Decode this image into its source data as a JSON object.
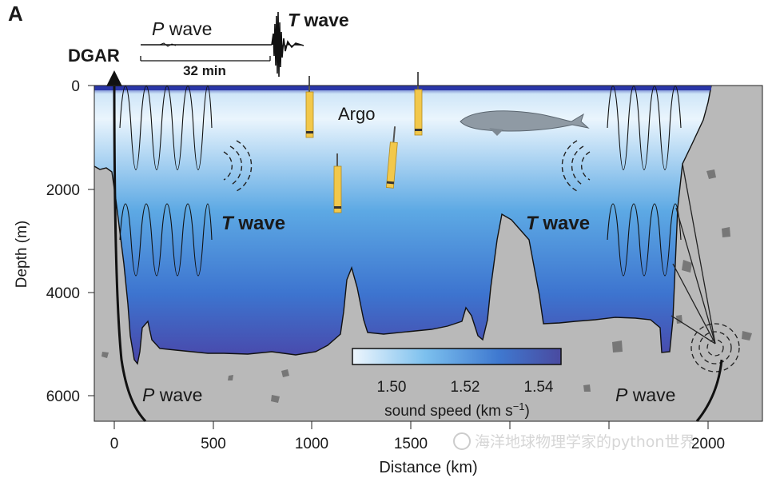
{
  "panel_label": "A",
  "station": "DGAR",
  "seismogram": {
    "p_label": "P",
    "t_label": "T",
    "wave_word": "wave",
    "scale_label": "32 min"
  },
  "float_label": "Argo",
  "wave_labels": {
    "t_left": "T",
    "t_right": "T",
    "p_left": "P",
    "p_right": "P",
    "word": "wave"
  },
  "axes": {
    "ylabel": "Depth (m)",
    "xlabel": "Distance (km)",
    "y_ticks": [
      "0",
      "2000",
      "4000",
      "6000"
    ],
    "x_ticks": [
      "0",
      "500",
      "1000",
      "1500",
      "2000"
    ]
  },
  "colorbar": {
    "ticks": [
      "1.50",
      "1.52",
      "1.54"
    ],
    "label": "sound speed (km s",
    "label_sup": "−1",
    "label_close": ")",
    "color_low": "#eef6fd",
    "color_high": "#4a4aa0"
  },
  "watermark": "海洋地球物理学家的python世界",
  "colors": {
    "seafloor": "#b9b9b9",
    "float_body": "#f2c84b",
    "whale": "#8f9aa4"
  }
}
